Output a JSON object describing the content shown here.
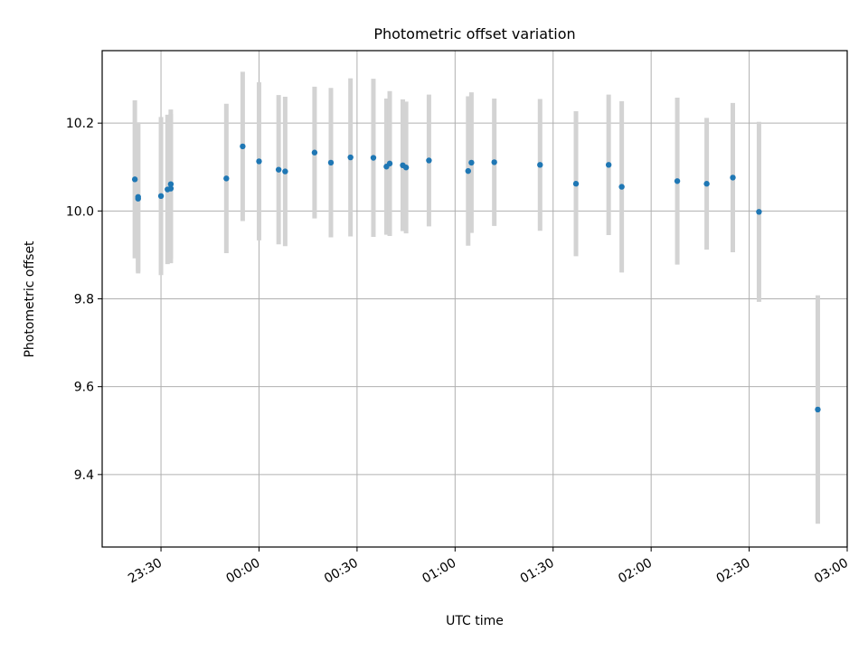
{
  "chart_data": {
    "type": "scatter",
    "title": "Photometric offset variation",
    "xlabel": "UTC time",
    "ylabel": "Photometric offset",
    "x_unit": "UTC time",
    "x_ticks": [
      "23:30",
      "00:00",
      "00:30",
      "01:00",
      "01:30",
      "02:00",
      "02:30",
      "03:00"
    ],
    "y_ticks": [
      "9.4",
      "9.6",
      "9.8",
      "10.0",
      "10.2"
    ],
    "xlim": [
      "23:12",
      "03:00"
    ],
    "ylim": [
      9.235,
      10.365
    ],
    "grid": true,
    "marker_color": "#1f77b4",
    "errorbar_color": "#d3d3d3",
    "points": [
      {
        "t": "23:22",
        "y": 10.072,
        "err": 0.18
      },
      {
        "t": "23:23",
        "y": 10.028,
        "err": 0.17
      },
      {
        "t": "23:23",
        "y": 10.032,
        "err": 0.17
      },
      {
        "t": "23:30",
        "y": 10.034,
        "err": 0.18
      },
      {
        "t": "23:32",
        "y": 10.049,
        "err": 0.17
      },
      {
        "t": "23:33",
        "y": 10.051,
        "err": 0.17
      },
      {
        "t": "23:33",
        "y": 10.061,
        "err": 0.17
      },
      {
        "t": "23:50",
        "y": 10.074,
        "err": 0.17
      },
      {
        "t": "23:55",
        "y": 10.147,
        "err": 0.17
      },
      {
        "t": "00:00",
        "y": 10.113,
        "err": 0.18
      },
      {
        "t": "00:06",
        "y": 10.094,
        "err": 0.17
      },
      {
        "t": "00:08",
        "y": 10.09,
        "err": 0.17
      },
      {
        "t": "00:17",
        "y": 10.133,
        "err": 0.15
      },
      {
        "t": "00:22",
        "y": 10.11,
        "err": 0.17
      },
      {
        "t": "00:28",
        "y": 10.122,
        "err": 0.18
      },
      {
        "t": "00:35",
        "y": 10.121,
        "err": 0.18
      },
      {
        "t": "00:39",
        "y": 10.101,
        "err": 0.155
      },
      {
        "t": "00:40",
        "y": 10.108,
        "err": 0.165
      },
      {
        "t": "00:44",
        "y": 10.104,
        "err": 0.15
      },
      {
        "t": "00:45",
        "y": 10.099,
        "err": 0.15
      },
      {
        "t": "00:52",
        "y": 10.115,
        "err": 0.15
      },
      {
        "t": "01:04",
        "y": 10.091,
        "err": 0.17
      },
      {
        "t": "01:05",
        "y": 10.11,
        "err": 0.16
      },
      {
        "t": "01:12",
        "y": 10.111,
        "err": 0.145
      },
      {
        "t": "01:26",
        "y": 10.105,
        "err": 0.15
      },
      {
        "t": "01:37",
        "y": 10.062,
        "err": 0.165
      },
      {
        "t": "01:47",
        "y": 10.105,
        "err": 0.16
      },
      {
        "t": "01:51",
        "y": 10.055,
        "err": 0.195
      },
      {
        "t": "02:08",
        "y": 10.068,
        "err": 0.19
      },
      {
        "t": "02:17",
        "y": 10.062,
        "err": 0.15
      },
      {
        "t": "02:25",
        "y": 10.076,
        "err": 0.17
      },
      {
        "t": "02:33",
        "y": 9.998,
        "err": 0.205
      },
      {
        "t": "02:51",
        "y": 9.548,
        "err": 0.26
      }
    ]
  }
}
